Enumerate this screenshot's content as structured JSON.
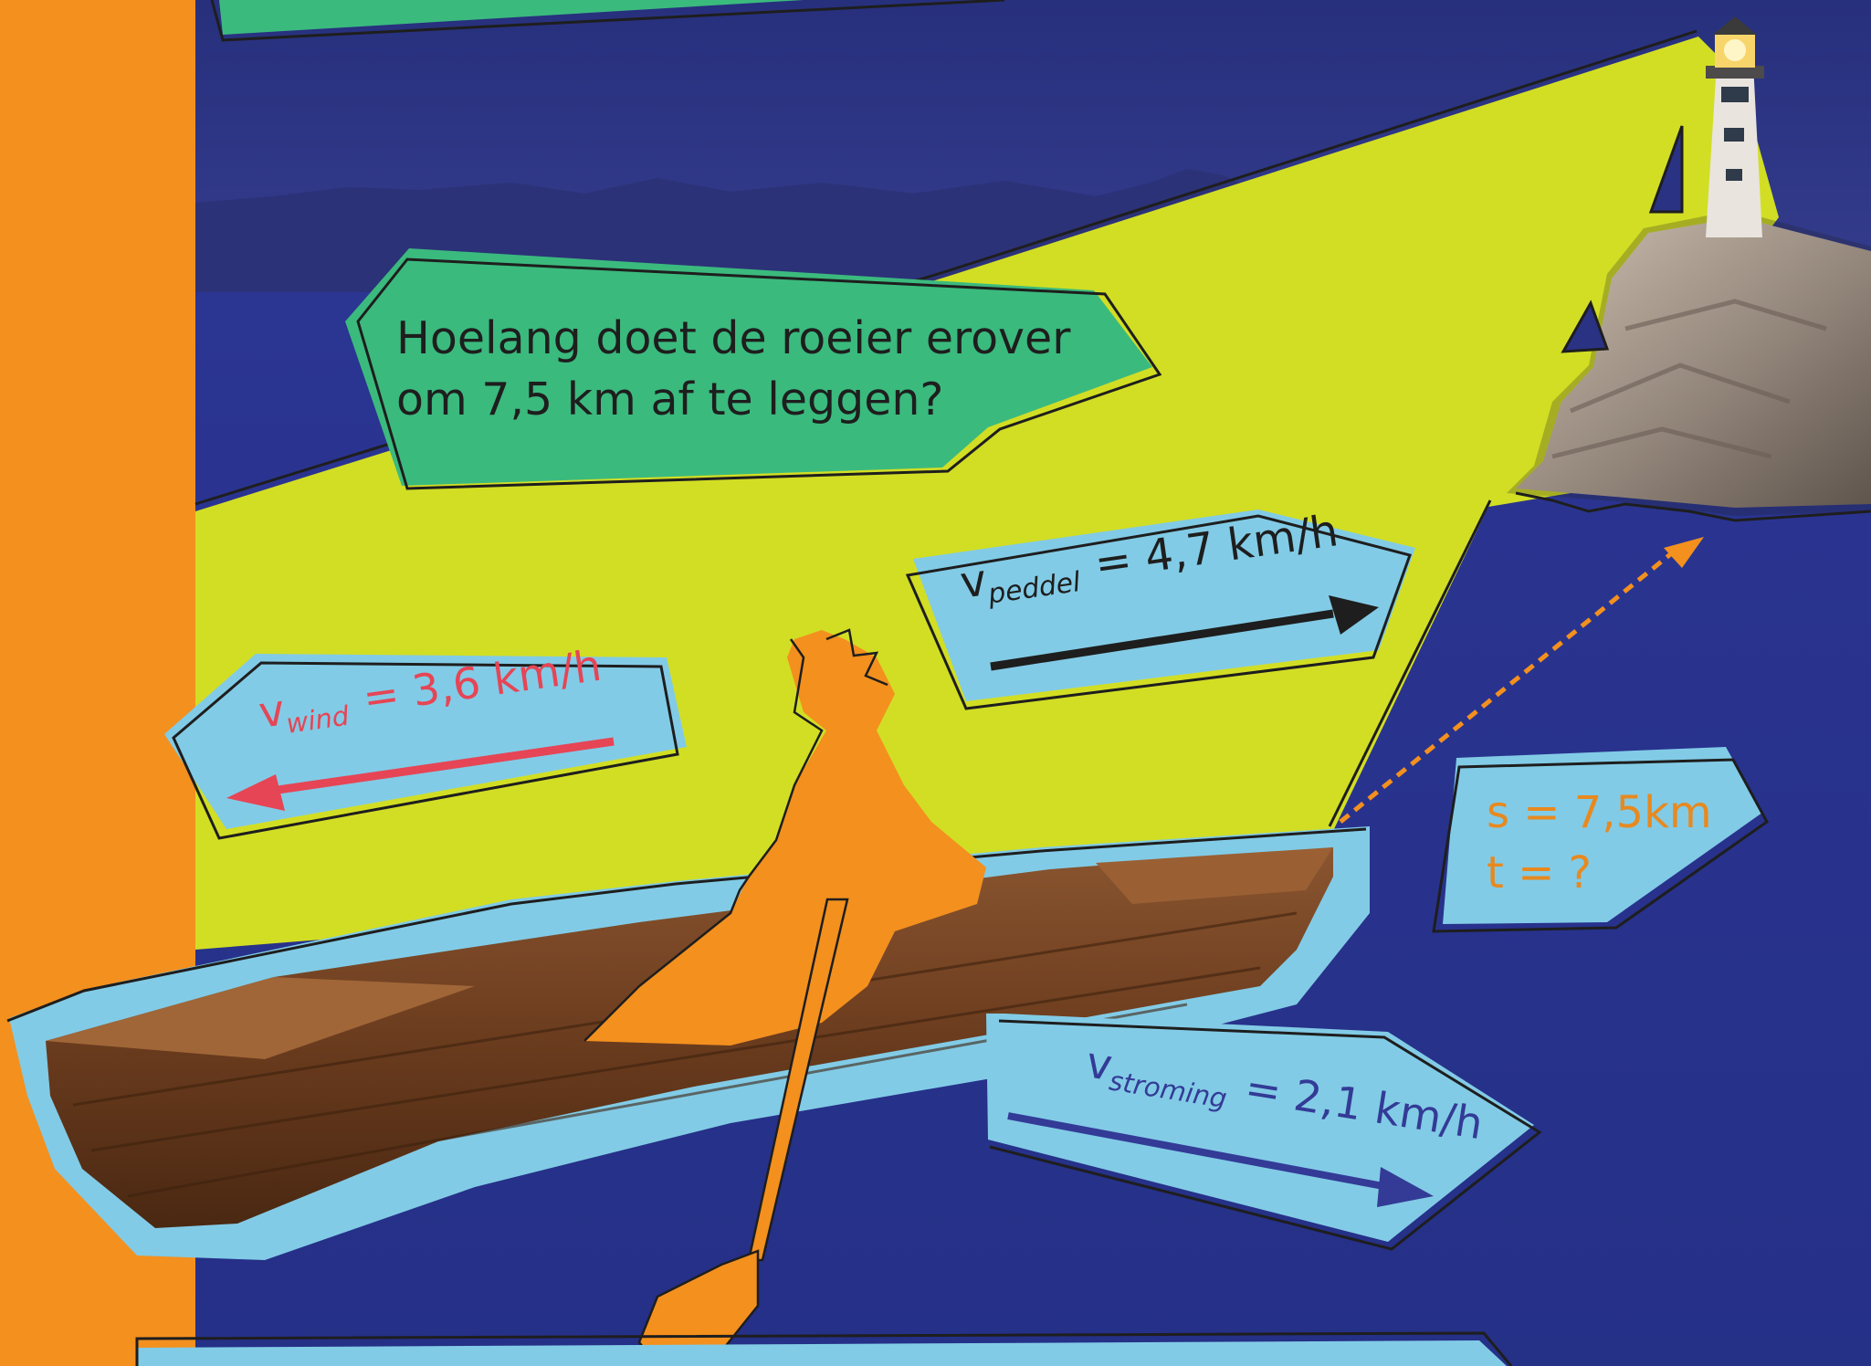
{
  "question": {
    "line1": "Hoelang doet de roeier erover",
    "line2": "om 7,5 km af te leggen?"
  },
  "labels": {
    "peddel": {
      "symbol": "v",
      "subscript": "peddel",
      "value": "= 4,7 km/h"
    },
    "wind": {
      "symbol": "v",
      "subscript": "wind",
      "value": "= 3,6 km/h"
    },
    "stroming": {
      "symbol": "v",
      "subscript": "stroming",
      "value": "= 2,1 km/h"
    }
  },
  "given": {
    "s": "s = 7,5km",
    "t": "t = ?"
  },
  "colors": {
    "orange": "#f3901e",
    "navy": "#2a3284",
    "lime": "#d2de24",
    "green": "#3bba7e",
    "light_blue": "#82cbe6",
    "wind_red": "#e64555",
    "stroming_blue": "#333b96"
  },
  "icons": [
    "lighthouse-icon",
    "rowing-boat-icon",
    "rower-silhouette-icon",
    "oar-icon"
  ]
}
